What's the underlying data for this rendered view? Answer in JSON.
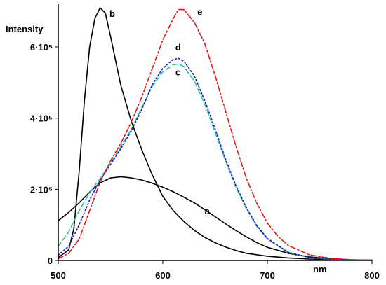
{
  "chart_data": {
    "type": "line",
    "title": "",
    "xlabel": "nm",
    "ylabel": "Intensity",
    "xlim": [
      500,
      800
    ],
    "ylim": [
      0,
      720000
    ],
    "grid": false,
    "legend": "none",
    "x_ticks": [
      {
        "value": 500,
        "label": "500"
      },
      {
        "value": 600,
        "label": "600"
      },
      {
        "value": 700,
        "label": "700"
      },
      {
        "value": 800,
        "label": "800"
      }
    ],
    "y_ticks": [
      {
        "value": 0,
        "label": "0"
      },
      {
        "value": 200000,
        "label": "2·10⁵"
      },
      {
        "value": 400000,
        "label": "4·10⁵"
      },
      {
        "value": 600000,
        "label": "6·10⁵"
      }
    ],
    "series": [
      {
        "name": "a",
        "color": "#000000",
        "dash": "solid",
        "label_at": [
          640,
          130000
        ],
        "x": [
          500,
          510,
          520,
          530,
          540,
          550,
          560,
          570,
          580,
          590,
          600,
          610,
          620,
          630,
          640,
          650,
          660,
          670,
          680,
          690,
          700,
          720,
          740,
          760,
          780,
          800
        ],
        "y": [
          112000,
          135000,
          162000,
          192000,
          218000,
          232000,
          235000,
          232000,
          226000,
          217000,
          206000,
          193000,
          178000,
          162000,
          143000,
          123000,
          103000,
          84000,
          66000,
          50000,
          37000,
          20000,
          10000,
          5000,
          2000,
          800
        ]
      },
      {
        "name": "b",
        "color": "#000000",
        "dash": "solid",
        "label_at": [
          549,
          685000
        ],
        "x": [
          500,
          510,
          515,
          520,
          525,
          530,
          535,
          540,
          545,
          550,
          555,
          560,
          570,
          580,
          590,
          600,
          610,
          620,
          630,
          640,
          650,
          660,
          670,
          680,
          700,
          720,
          740,
          760,
          780,
          800
        ],
        "y": [
          8000,
          30000,
          90000,
          250000,
          450000,
          600000,
          680000,
          710000,
          695000,
          630000,
          560000,
          490000,
          390000,
          310000,
          240000,
          180000,
          140000,
          110000,
          85000,
          65000,
          50000,
          38000,
          28000,
          20000,
          12000,
          7000,
          4000,
          2500,
          1200,
          500
        ]
      },
      {
        "name": "c",
        "color": "#2fbf9f",
        "dash": "dashed",
        "label_at": [
          612,
          520000
        ],
        "x": [
          500,
          510,
          520,
          530,
          540,
          550,
          560,
          570,
          580,
          590,
          600,
          610,
          615,
          620,
          630,
          640,
          650,
          660,
          670,
          680,
          690,
          700,
          720,
          740,
          760,
          780,
          800
        ],
        "y": [
          40000,
          80000,
          140000,
          190000,
          230000,
          275000,
          320000,
          370000,
          430000,
          490000,
          530000,
          550000,
          552000,
          545000,
          505000,
          440000,
          360000,
          280000,
          205000,
          145000,
          95000,
          60000,
          22000,
          8000,
          3000,
          1200,
          500
        ]
      },
      {
        "name": "d",
        "color": "#1a1ad6",
        "dash": "dotted",
        "label_at": [
          612,
          590000
        ],
        "x": [
          500,
          510,
          520,
          530,
          540,
          550,
          560,
          570,
          580,
          590,
          600,
          610,
          615,
          620,
          630,
          640,
          650,
          660,
          670,
          680,
          690,
          700,
          720,
          740,
          760,
          780,
          800
        ],
        "y": [
          15000,
          40000,
          100000,
          170000,
          225000,
          270000,
          315000,
          365000,
          425000,
          495000,
          540000,
          565000,
          568000,
          560000,
          520000,
          450000,
          370000,
          285000,
          210000,
          148000,
          98000,
          62000,
          23000,
          8500,
          3000,
          1200,
          500
        ]
      },
      {
        "name": "e",
        "color": "#e01a1a",
        "dash": "dashdot",
        "label_at": [
          633,
          690000
        ],
        "x": [
          500,
          510,
          520,
          530,
          540,
          550,
          560,
          570,
          580,
          590,
          600,
          610,
          615,
          620,
          630,
          640,
          650,
          660,
          670,
          680,
          690,
          700,
          710,
          720,
          740,
          760,
          780,
          800
        ],
        "y": [
          5000,
          20000,
          60000,
          140000,
          220000,
          280000,
          330000,
          390000,
          460000,
          540000,
          620000,
          680000,
          705000,
          705000,
          670000,
          610000,
          520000,
          420000,
          320000,
          230000,
          160000,
          105000,
          68000,
          42000,
          16000,
          6000,
          2000,
          700
        ]
      }
    ]
  }
}
